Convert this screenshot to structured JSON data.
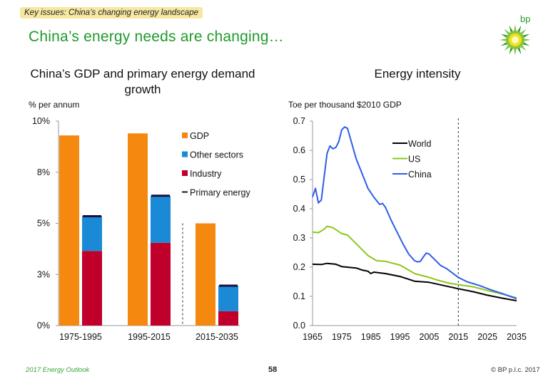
{
  "header": {
    "tag": "Key issues: China’s changing energy landscape",
    "title": "China’s energy needs are changing…",
    "logo_text": "bp"
  },
  "footer": {
    "left": "2017 Energy Outlook",
    "page": "58",
    "right": "© BP p.l.c. 2017"
  },
  "colors": {
    "gdp": "#f5890f",
    "other": "#1a8ad6",
    "industry": "#c0002a",
    "primary": "#1a0f3a",
    "world": "#000000",
    "us": "#8cc819",
    "china": "#2f5ce8",
    "title": "#1f9a2a"
  },
  "chart_data": [
    {
      "type": "bar",
      "title": "China’s GDP and primary energy demand growth",
      "ylabel": "% per annum",
      "ylim": [
        0,
        10
      ],
      "yticks": [
        0,
        2.5,
        5,
        7.5,
        10
      ],
      "ytick_labels": [
        "0%",
        "3%",
        "5%",
        "8%",
        "10%"
      ],
      "categories": [
        "1975-1995",
        "1995-2015",
        "2015-2035"
      ],
      "series": [
        {
          "name": "GDP",
          "values": [
            9.3,
            9.4,
            5.0
          ]
        },
        {
          "name": "Other sectors",
          "values": [
            1.7,
            2.3,
            1.25
          ],
          "stack": "energy"
        },
        {
          "name": "Industry",
          "values": [
            3.65,
            4.05,
            0.7
          ],
          "stack": "energy"
        },
        {
          "name": "Primary energy",
          "values": [
            5.35,
            6.35,
            1.95
          ]
        }
      ],
      "legend": "top-right",
      "annotations": [
        "dashed divider before 2015-2035 (projection)"
      ]
    },
    {
      "type": "line",
      "title": "Energy intensity",
      "ylabel": "Toe per thousand $2010 GDP",
      "xlim": [
        1965,
        2035
      ],
      "ylim": [
        0,
        0.7
      ],
      "xticks": [
        1965,
        1975,
        1985,
        1995,
        2005,
        2015,
        2025,
        2035
      ],
      "yticks": [
        "0.0",
        "0.1",
        "0.2",
        "0.3",
        "0.4",
        "0.5",
        "0.6",
        "0.7"
      ],
      "legend": "top-center",
      "vline": 2015,
      "series": [
        {
          "name": "World",
          "x": [
            1965,
            1968,
            1970,
            1973,
            1975,
            1980,
            1982,
            1984,
            1985,
            1986,
            1990,
            1995,
            2000,
            2005,
            2010,
            2015,
            2020,
            2025,
            2030,
            2035
          ],
          "y": [
            0.21,
            0.209,
            0.213,
            0.21,
            0.202,
            0.197,
            0.19,
            0.186,
            0.178,
            0.183,
            0.178,
            0.168,
            0.152,
            0.148,
            0.137,
            0.126,
            0.116,
            0.104,
            0.094,
            0.085
          ]
        },
        {
          "name": "US",
          "x": [
            1965,
            1967,
            1969,
            1970,
            1972,
            1975,
            1977,
            1979,
            1982,
            1984,
            1987,
            1990,
            1995,
            1998,
            2000,
            2005,
            2008,
            2012,
            2015,
            2020,
            2025,
            2030,
            2035
          ],
          "y": [
            0.32,
            0.318,
            0.33,
            0.34,
            0.335,
            0.315,
            0.31,
            0.29,
            0.26,
            0.24,
            0.222,
            0.22,
            0.207,
            0.19,
            0.178,
            0.165,
            0.155,
            0.145,
            0.14,
            0.133,
            0.12,
            0.108,
            0.095
          ]
        },
        {
          "name": "China",
          "x": [
            1965,
            1966,
            1967,
            1968,
            1970,
            1971,
            1972,
            1973,
            1974,
            1975,
            1976,
            1977,
            1978,
            1980,
            1982,
            1984,
            1986,
            1988,
            1989,
            1990,
            1992,
            1994,
            1996,
            1998,
            2000,
            2001,
            2002,
            2003,
            2004,
            2005,
            2007,
            2009,
            2011,
            2013,
            2015,
            2018,
            2022,
            2026,
            2030,
            2035
          ],
          "y": [
            0.44,
            0.47,
            0.42,
            0.43,
            0.59,
            0.615,
            0.605,
            0.61,
            0.63,
            0.67,
            0.68,
            0.675,
            0.64,
            0.57,
            0.52,
            0.47,
            0.44,
            0.415,
            0.418,
            0.405,
            0.36,
            0.32,
            0.28,
            0.245,
            0.222,
            0.218,
            0.22,
            0.235,
            0.248,
            0.245,
            0.225,
            0.205,
            0.195,
            0.18,
            0.165,
            0.15,
            0.138,
            0.123,
            0.11,
            0.092
          ]
        }
      ]
    }
  ]
}
